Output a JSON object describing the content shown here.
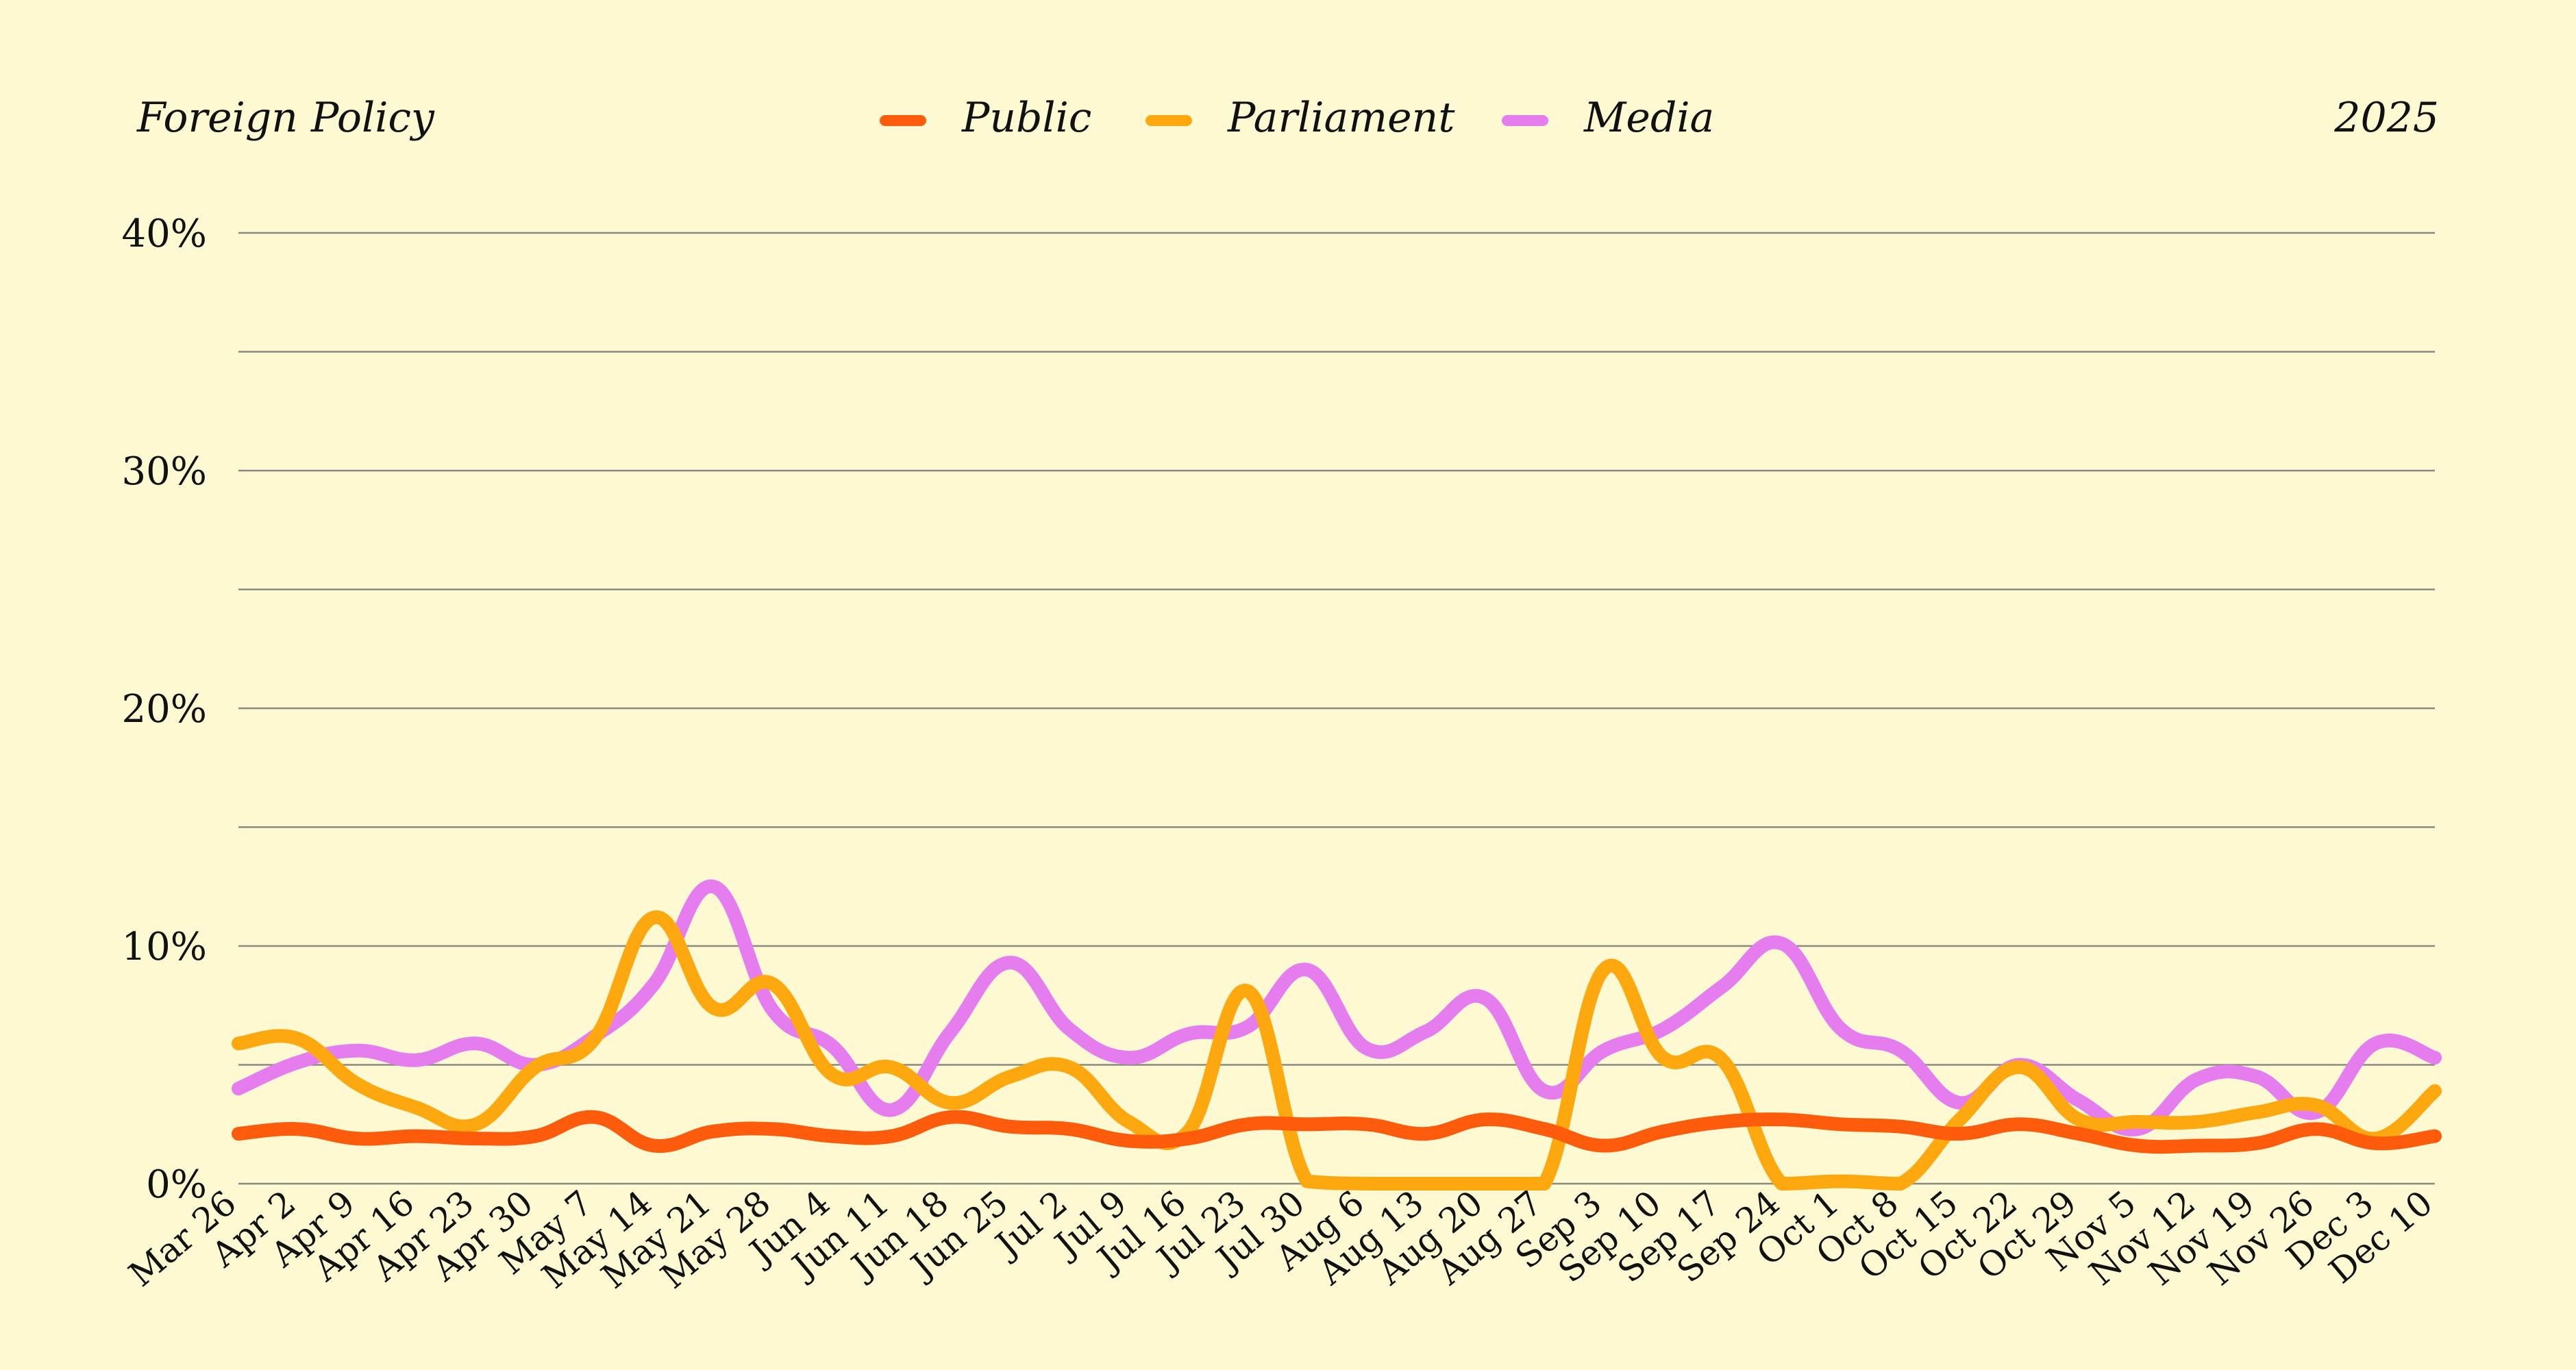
{
  "header": {
    "title": "Foreign Policy",
    "year": "2025"
  },
  "chart_data": {
    "type": "line",
    "title": "Foreign Policy",
    "xlabel": "",
    "ylabel": "",
    "ylim": [
      0,
      40
    ],
    "y_ticks": [
      "0%",
      "10%",
      "20%",
      "30%",
      "40%"
    ],
    "y_tick_values": [
      0,
      10,
      20,
      30,
      40
    ],
    "y_minor_gridlines": [
      5,
      15,
      25,
      35
    ],
    "grid": true,
    "legend_position": "top-center",
    "categories": [
      "Mar 26",
      "Apr 2",
      "Apr 9",
      "Apr 16",
      "Apr 23",
      "Apr 30",
      "May 7",
      "May 14",
      "May 21",
      "May 28",
      "Jun 4",
      "Jun 11",
      "Jun 18",
      "Jun 25",
      "Jul 2",
      "Jul 9",
      "Jul 16",
      "Jul 23",
      "Jul 30",
      "Aug 6",
      "Aug 13",
      "Aug 20",
      "Aug 27",
      "Sep 3",
      "Sep 10",
      "Sep 17",
      "Sep 24",
      "Oct 1",
      "Oct 8",
      "Oct 15",
      "Oct 22",
      "Oct 29",
      "Nov 5",
      "Nov 12",
      "Nov 19",
      "Nov 26",
      "Dec 3",
      "Dec 10"
    ],
    "series": [
      {
        "name": "Public",
        "color": "#fe5c0b",
        "values": [
          2.1,
          2.3,
          1.9,
          2.0,
          1.9,
          2.0,
          2.8,
          1.6,
          2.2,
          2.3,
          2.0,
          2.0,
          2.8,
          2.4,
          2.3,
          1.8,
          1.9,
          2.5,
          2.5,
          2.5,
          2.1,
          2.7,
          2.3,
          1.6,
          2.2,
          2.6,
          2.7,
          2.5,
          2.4,
          2.1,
          2.5,
          2.1,
          1.6,
          1.6,
          1.7,
          2.3,
          1.7,
          2.0
        ]
      },
      {
        "name": "Parliament",
        "color": "#fea80f",
        "values": [
          5.9,
          6.1,
          4.2,
          3.2,
          2.5,
          4.9,
          6.1,
          11.2,
          7.4,
          8.4,
          4.6,
          4.9,
          3.4,
          4.5,
          4.9,
          2.6,
          2.2,
          8.1,
          0.1,
          0.0,
          0.0,
          0.0,
          0.0,
          9.0,
          5.3,
          5.2,
          0.0,
          0.1,
          0.0,
          2.7,
          4.9,
          2.7,
          2.6,
          2.6,
          3.0,
          3.3,
          1.9,
          3.9
        ]
      },
      {
        "name": "Media",
        "color": "#e57def",
        "values": [
          4.0,
          5.1,
          5.6,
          5.2,
          5.9,
          5.0,
          6.2,
          8.4,
          12.5,
          7.3,
          5.8,
          3.1,
          6.4,
          9.3,
          6.5,
          5.3,
          6.3,
          6.6,
          9.0,
          5.7,
          6.4,
          7.8,
          3.9,
          5.6,
          6.5,
          8.3,
          10.1,
          6.5,
          5.6,
          3.4,
          5.0,
          3.5,
          2.3,
          4.4,
          4.5,
          3.0,
          5.9,
          5.3
        ]
      }
    ]
  }
}
